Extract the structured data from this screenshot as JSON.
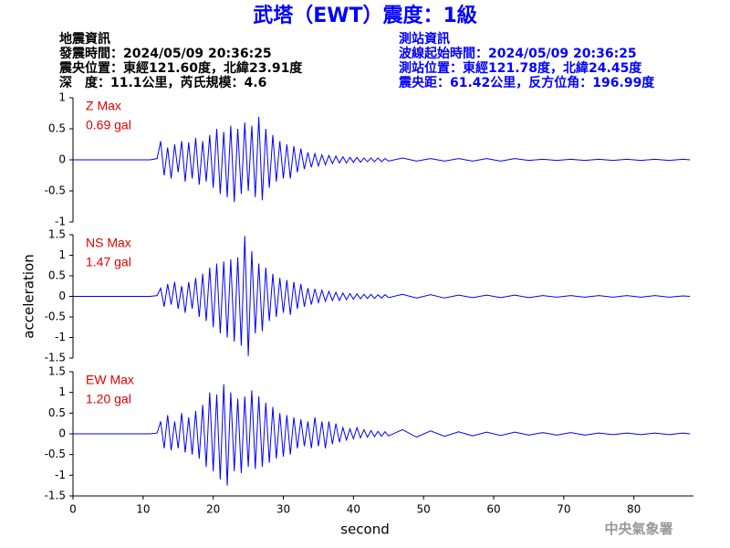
{
  "header": {
    "title": "武塔（EWT）震度：1級",
    "left": [
      "地震資訊",
      "發震時間：2024/05/09 20:36:25",
      "震央位置：東經121.60度，北緯23.91度",
      "深　度：11.1公里，芮氏規模：4.6"
    ],
    "right": [
      "測站資訊",
      "波線起始時間：2024/05/09 20:36:25",
      "測站位置：東經121.78度，北緯24.45度",
      "震央距：61.42公里，反方位角：196.99度"
    ],
    "footer": "中央氣象署"
  },
  "chart_data": [
    {
      "type": "line",
      "label": "Z Max",
      "max_label": "0.69 gal",
      "x": [
        0,
        4,
        8,
        11,
        12,
        12.5,
        13,
        13.5,
        14,
        14.5,
        15,
        15.5,
        16,
        16.5,
        17,
        17.5,
        18,
        18.5,
        19,
        19.5,
        20,
        20.5,
        21,
        21.5,
        22,
        22.5,
        23,
        23.5,
        24,
        24.5,
        25,
        25.5,
        26,
        26.5,
        27,
        27.5,
        28,
        28.5,
        29,
        29.5,
        30,
        30.5,
        31,
        31.5,
        32,
        32.5,
        33,
        33.5,
        34,
        34.5,
        35,
        35.5,
        36,
        36.5,
        37,
        37.5,
        38,
        38.5,
        39,
        39.5,
        40,
        40.5,
        41,
        41.5,
        42,
        42.5,
        43,
        43.5,
        44,
        44.5,
        45,
        47,
        49,
        51,
        53,
        55,
        57,
        59,
        61,
        63,
        65,
        67,
        69,
        71,
        73,
        75,
        77,
        79,
        81,
        83,
        85,
        87,
        88
      ],
      "series": [
        {
          "color": "#0000ff",
          "values": [
            0,
            0,
            0,
            0,
            0.02,
            0.3,
            -0.25,
            0.2,
            -0.3,
            0.25,
            -0.2,
            0.3,
            -0.35,
            0.28,
            -0.3,
            0.35,
            -0.4,
            0.3,
            -0.35,
            0.4,
            -0.45,
            0.5,
            -0.55,
            0.45,
            -0.6,
            0.55,
            -0.68,
            0.5,
            -0.55,
            0.6,
            -0.5,
            0.55,
            -0.6,
            0.69,
            -0.65,
            0.5,
            -0.45,
            0.4,
            -0.35,
            0.3,
            -0.3,
            0.25,
            -0.3,
            0.22,
            -0.2,
            0.18,
            -0.15,
            0.12,
            -0.12,
            0.1,
            -0.1,
            0.08,
            -0.08,
            0.07,
            -0.06,
            0.06,
            -0.05,
            0.05,
            -0.05,
            0.04,
            -0.04,
            0.04,
            -0.04,
            0.03,
            -0.03,
            0.03,
            -0.03,
            0.03,
            -0.03,
            0.02,
            -0.02,
            0.03,
            -0.02,
            0.02,
            -0.02,
            0.02,
            -0.02,
            0.02,
            -0.02,
            0.02,
            -0.01,
            0.01,
            -0.01,
            0.01,
            -0.01,
            0.01,
            -0.01,
            0.01,
            -0.01,
            0.01,
            -0.01,
            0.01,
            0
          ]
        }
      ],
      "xlim": [
        0,
        88.5
      ],
      "ylim": [
        -1,
        1
      ],
      "yticks": [
        -1,
        -0.5,
        0,
        0.5,
        1
      ]
    },
    {
      "type": "line",
      "label": "NS Max",
      "max_label": "1.47 gal",
      "ylabel": "acceleration",
      "x": [
        0,
        4,
        8,
        11,
        12,
        12.5,
        13,
        13.5,
        14,
        14.5,
        15,
        15.5,
        16,
        16.5,
        17,
        17.5,
        18,
        18.5,
        19,
        19.5,
        20,
        20.5,
        21,
        21.5,
        22,
        22.5,
        23,
        23.5,
        24,
        24.5,
        25,
        25.5,
        26,
        26.5,
        27,
        27.5,
        28,
        28.5,
        29,
        29.5,
        30,
        30.5,
        31,
        31.5,
        32,
        32.5,
        33,
        33.5,
        34,
        34.5,
        35,
        35.5,
        36,
        36.5,
        37,
        37.5,
        38,
        38.5,
        39,
        39.5,
        40,
        40.5,
        41,
        41.5,
        42,
        42.5,
        43,
        43.5,
        44,
        44.5,
        45,
        47,
        49,
        51,
        53,
        55,
        57,
        59,
        61,
        63,
        65,
        67,
        69,
        71,
        73,
        75,
        77,
        79,
        81,
        83,
        85,
        87,
        88
      ],
      "series": [
        {
          "color": "#0000ff",
          "values": [
            0,
            0,
            0,
            0,
            0.02,
            0.2,
            -0.25,
            0.3,
            -0.2,
            0.35,
            -0.3,
            0.25,
            -0.4,
            0.35,
            -0.3,
            0.45,
            -0.5,
            0.55,
            -0.6,
            0.7,
            -0.75,
            0.8,
            -0.9,
            0.85,
            -1.0,
            0.9,
            -1.1,
            0.95,
            -1.2,
            1.47,
            -1.45,
            1.1,
            -0.9,
            0.8,
            -0.85,
            0.7,
            -0.6,
            0.55,
            -0.5,
            0.45,
            -0.4,
            0.4,
            -0.45,
            0.35,
            -0.3,
            0.3,
            -0.25,
            0.2,
            -0.2,
            0.18,
            -0.15,
            0.15,
            -0.12,
            0.12,
            -0.1,
            0.1,
            -0.1,
            0.08,
            -0.08,
            0.07,
            -0.07,
            0.06,
            -0.06,
            0.05,
            -0.05,
            0.05,
            -0.05,
            0.04,
            -0.04,
            0.04,
            -0.03,
            0.05,
            -0.04,
            0.04,
            -0.04,
            0.03,
            -0.03,
            0.03,
            -0.03,
            0.03,
            -0.03,
            0.02,
            -0.02,
            0.02,
            -0.02,
            0.02,
            -0.02,
            0.02,
            -0.02,
            0.02,
            -0.02,
            0.01,
            0
          ]
        }
      ],
      "xlim": [
        0,
        88.5
      ],
      "ylim": [
        -1.5,
        1.5
      ],
      "yticks": [
        -1.5,
        -1,
        -0.5,
        0,
        0.5,
        1,
        1.5
      ]
    },
    {
      "type": "line",
      "label": "EW Max",
      "max_label": "1.20 gal",
      "xlabel": "second",
      "x": [
        0,
        4,
        8,
        11,
        12,
        12.5,
        13,
        13.5,
        14,
        14.5,
        15,
        15.5,
        16,
        16.5,
        17,
        17.5,
        18,
        18.5,
        19,
        19.5,
        20,
        20.5,
        21,
        21.5,
        22,
        22.5,
        23,
        23.5,
        24,
        24.5,
        25,
        25.5,
        26,
        26.5,
        27,
        27.5,
        28,
        28.5,
        29,
        29.5,
        30,
        30.5,
        31,
        31.5,
        32,
        32.5,
        33,
        33.5,
        34,
        34.5,
        35,
        35.5,
        36,
        36.5,
        37,
        37.5,
        38,
        38.5,
        39,
        39.5,
        40,
        40.5,
        41,
        41.5,
        42,
        42.5,
        43,
        43.5,
        44,
        44.5,
        45,
        47,
        49,
        51,
        53,
        55,
        57,
        59,
        61,
        63,
        65,
        67,
        69,
        71,
        73,
        75,
        77,
        79,
        81,
        83,
        85,
        87,
        88
      ],
      "series": [
        {
          "color": "#0000ff",
          "values": [
            0,
            0,
            0,
            0,
            0.02,
            0.3,
            -0.35,
            0.45,
            -0.4,
            0.3,
            -0.35,
            0.5,
            -0.45,
            0.4,
            -0.5,
            0.55,
            -0.6,
            0.7,
            -0.8,
            1.0,
            -0.9,
            0.95,
            -1.1,
            1.2,
            -1.25,
            1.0,
            -0.9,
            0.85,
            -0.95,
            0.9,
            -0.8,
            1.05,
            -0.85,
            0.9,
            -0.8,
            0.75,
            -0.7,
            0.65,
            -0.6,
            0.5,
            -0.55,
            0.45,
            -0.5,
            0.4,
            -0.35,
            0.35,
            -0.3,
            0.3,
            -0.35,
            0.4,
            -0.3,
            0.3,
            -0.35,
            0.3,
            -0.25,
            0.25,
            -0.2,
            0.15,
            -0.15,
            0.12,
            -0.12,
            0.15,
            -0.1,
            0.1,
            -0.08,
            0.08,
            -0.07,
            0.06,
            -0.06,
            0.05,
            -0.05,
            0.1,
            -0.08,
            0.07,
            -0.06,
            0.05,
            -0.05,
            0.04,
            -0.04,
            0.04,
            -0.03,
            0.03,
            -0.03,
            0.03,
            -0.03,
            0.02,
            -0.02,
            0.02,
            -0.02,
            0.02,
            -0.02,
            0.02,
            0
          ]
        }
      ],
      "xlim": [
        0,
        88.5
      ],
      "ylim": [
        -1.5,
        1.5
      ],
      "yticks": [
        -1.5,
        -1,
        -0.5,
        0,
        0.5,
        1,
        1.5
      ],
      "xticks": [
        0,
        10,
        20,
        30,
        40,
        50,
        60,
        70,
        80
      ]
    }
  ]
}
